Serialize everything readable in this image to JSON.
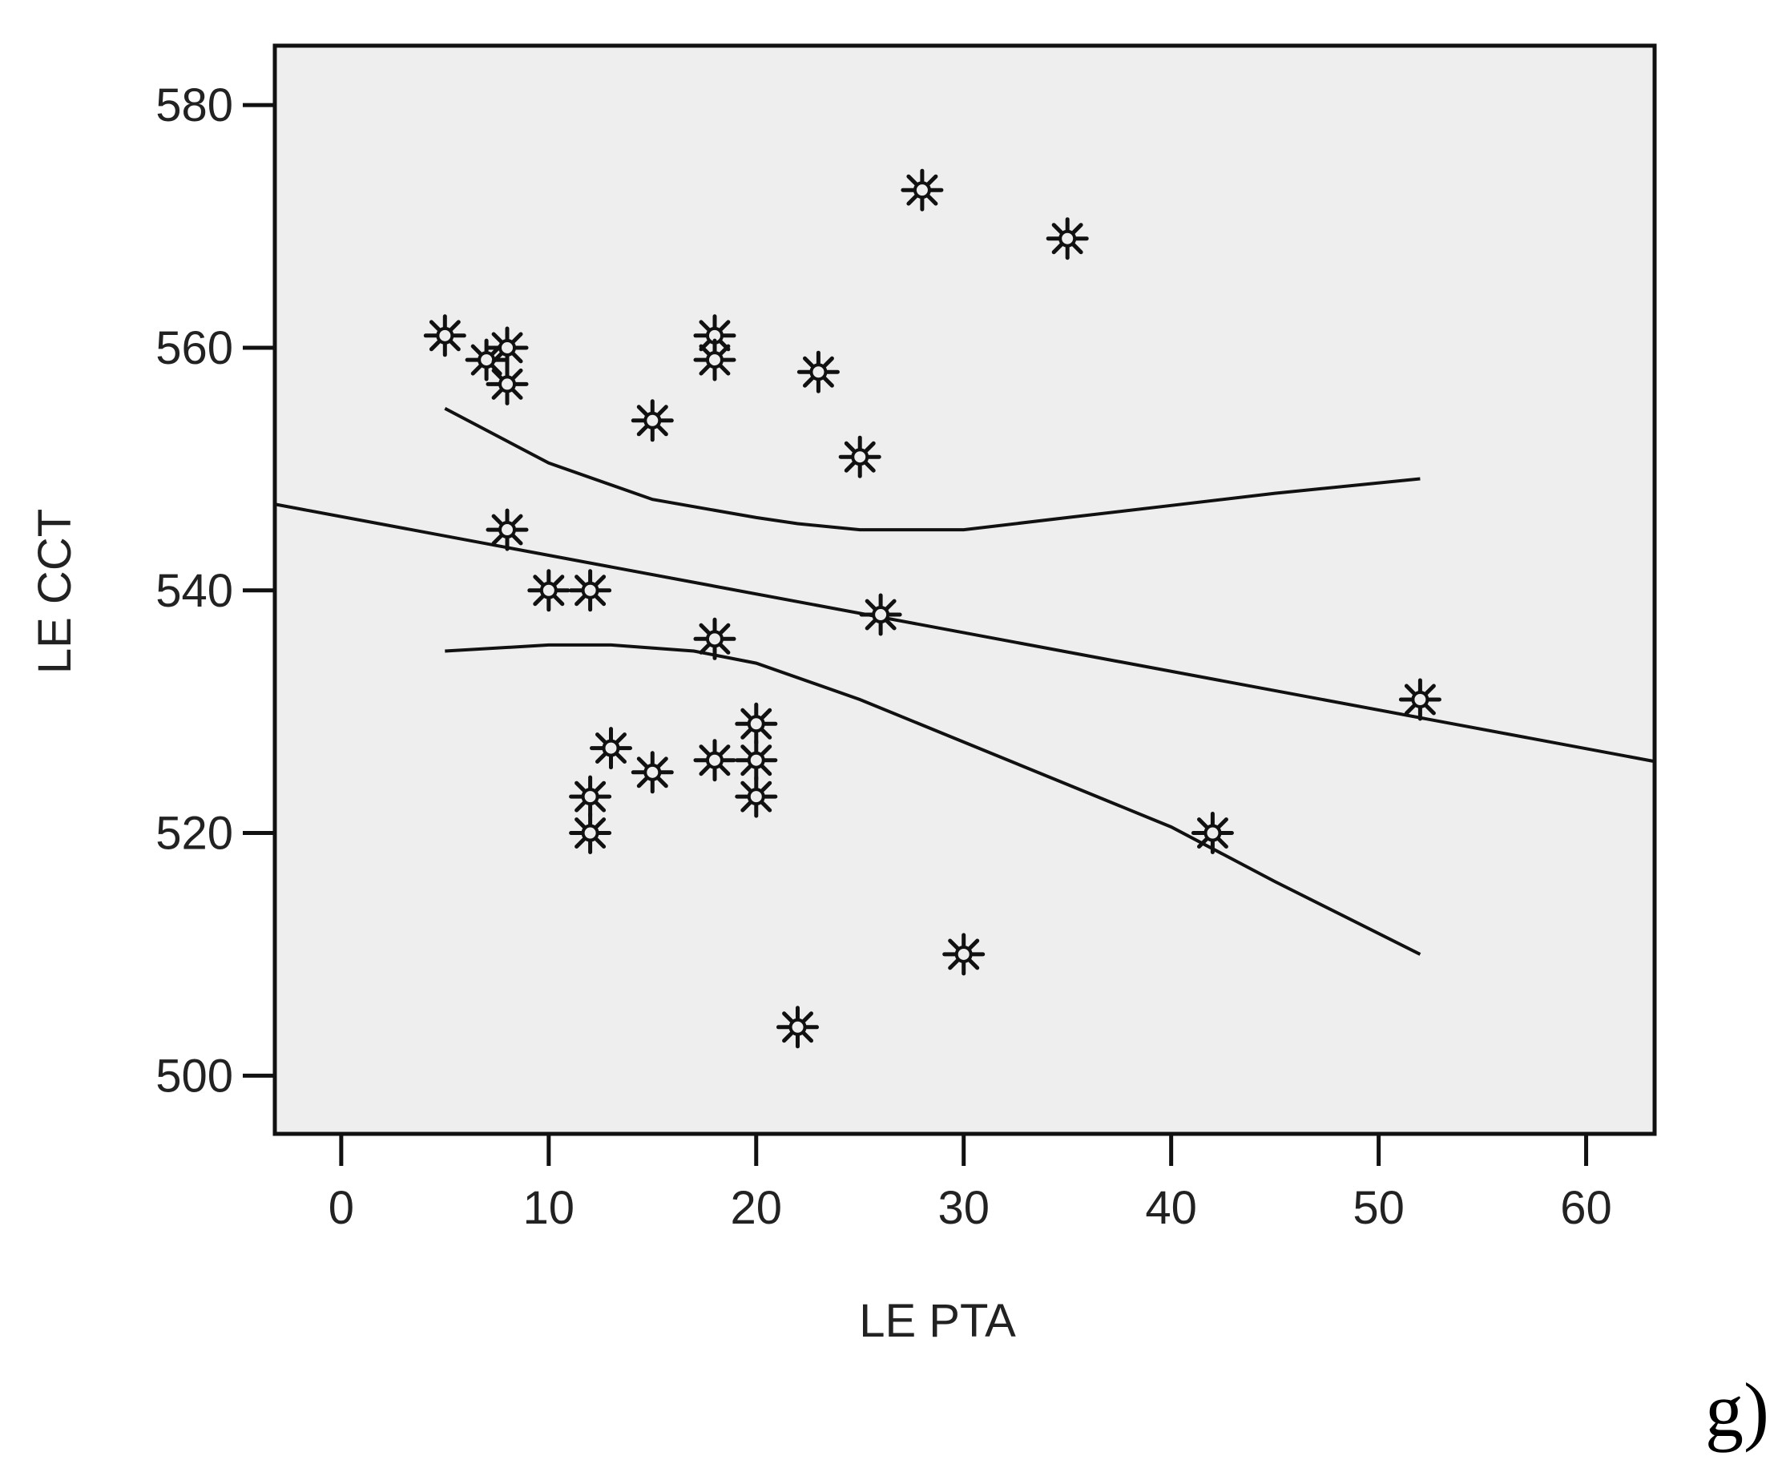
{
  "panel_label": "g)",
  "chart_data": {
    "type": "scatter",
    "xlabel": "LE PTA",
    "ylabel": "LE CCT",
    "xlim": [
      -3.2,
      63.3
    ],
    "ylim": [
      495.2,
      584.9
    ],
    "xticks": [
      0,
      10,
      20,
      30,
      40,
      50,
      60
    ],
    "yticks": [
      500,
      520,
      540,
      560,
      580
    ],
    "grid": false,
    "background": "#eeeeee",
    "marker": "asterisk",
    "points": [
      {
        "x": 5,
        "y": 561
      },
      {
        "x": 7,
        "y": 559
      },
      {
        "x": 8,
        "y": 560
      },
      {
        "x": 8,
        "y": 557
      },
      {
        "x": 8,
        "y": 545
      },
      {
        "x": 10,
        "y": 540
      },
      {
        "x": 12,
        "y": 540
      },
      {
        "x": 12,
        "y": 523
      },
      {
        "x": 12,
        "y": 520
      },
      {
        "x": 13,
        "y": 527
      },
      {
        "x": 15,
        "y": 554
      },
      {
        "x": 15,
        "y": 525
      },
      {
        "x": 18,
        "y": 561
      },
      {
        "x": 18,
        "y": 559
      },
      {
        "x": 18,
        "y": 536
      },
      {
        "x": 18,
        "y": 526
      },
      {
        "x": 20,
        "y": 529
      },
      {
        "x": 20,
        "y": 526
      },
      {
        "x": 20,
        "y": 523
      },
      {
        "x": 22,
        "y": 504
      },
      {
        "x": 23,
        "y": 558
      },
      {
        "x": 25,
        "y": 551
      },
      {
        "x": 26,
        "y": 538
      },
      {
        "x": 28,
        "y": 573
      },
      {
        "x": 30,
        "y": 510
      },
      {
        "x": 35,
        "y": 569
      },
      {
        "x": 42,
        "y": 520
      },
      {
        "x": 52,
        "y": 531
      }
    ],
    "fit_line": {
      "x": [
        -3.2,
        63.3
      ],
      "y": [
        547.1,
        525.9
      ]
    },
    "ci_upper": {
      "x": [
        5,
        10,
        15,
        20,
        22,
        25,
        30,
        35,
        40,
        45,
        52
      ],
      "y": [
        555,
        550.5,
        547.5,
        546,
        545.5,
        545,
        545,
        546,
        547,
        548,
        549.2
      ]
    },
    "ci_lower": {
      "x": [
        5,
        10,
        13,
        17,
        20,
        25,
        30,
        35,
        40,
        45,
        52
      ],
      "y": [
        535,
        535.5,
        535.5,
        535,
        534,
        531,
        527.5,
        524,
        520.5,
        516,
        510
      ]
    }
  }
}
